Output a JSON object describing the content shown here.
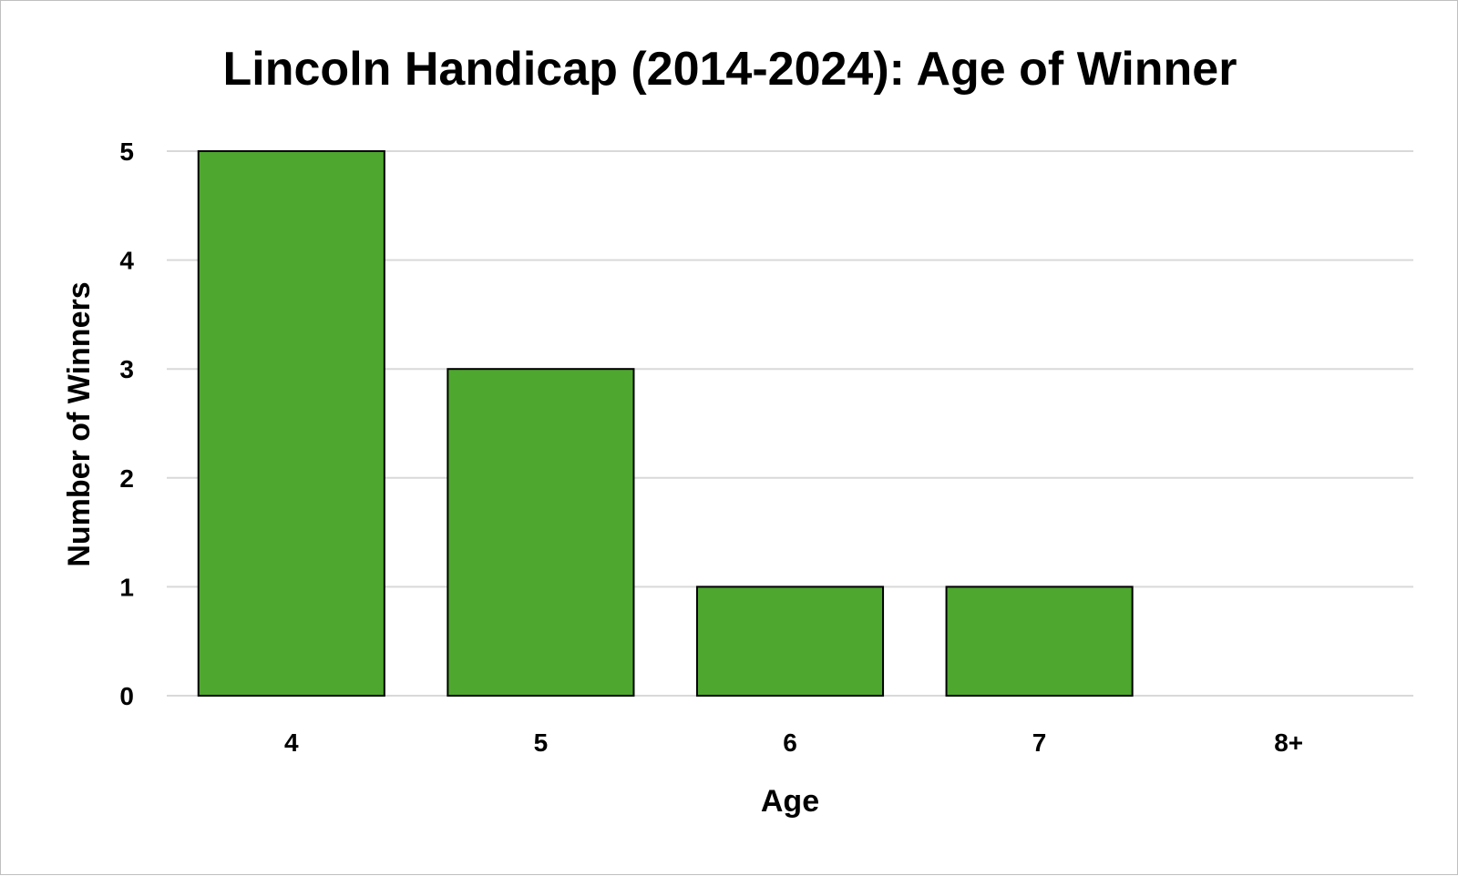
{
  "chart_data": {
    "type": "bar",
    "title": "Lincoln Handicap (2014-2024): Age of Winner",
    "xlabel": "Age",
    "ylabel": "Number of Winners",
    "categories": [
      "4",
      "5",
      "6",
      "7",
      "8+"
    ],
    "values": [
      5,
      3,
      1,
      1,
      0
    ],
    "ylim": [
      0,
      5
    ],
    "yticks": [
      "0",
      "1",
      "2",
      "3",
      "4",
      "5"
    ],
    "grid": true,
    "legend": "none",
    "colors": {
      "bar_fill": "#4ea72e",
      "bar_stroke": "#000000",
      "gridline": "#d9d9d9"
    }
  }
}
